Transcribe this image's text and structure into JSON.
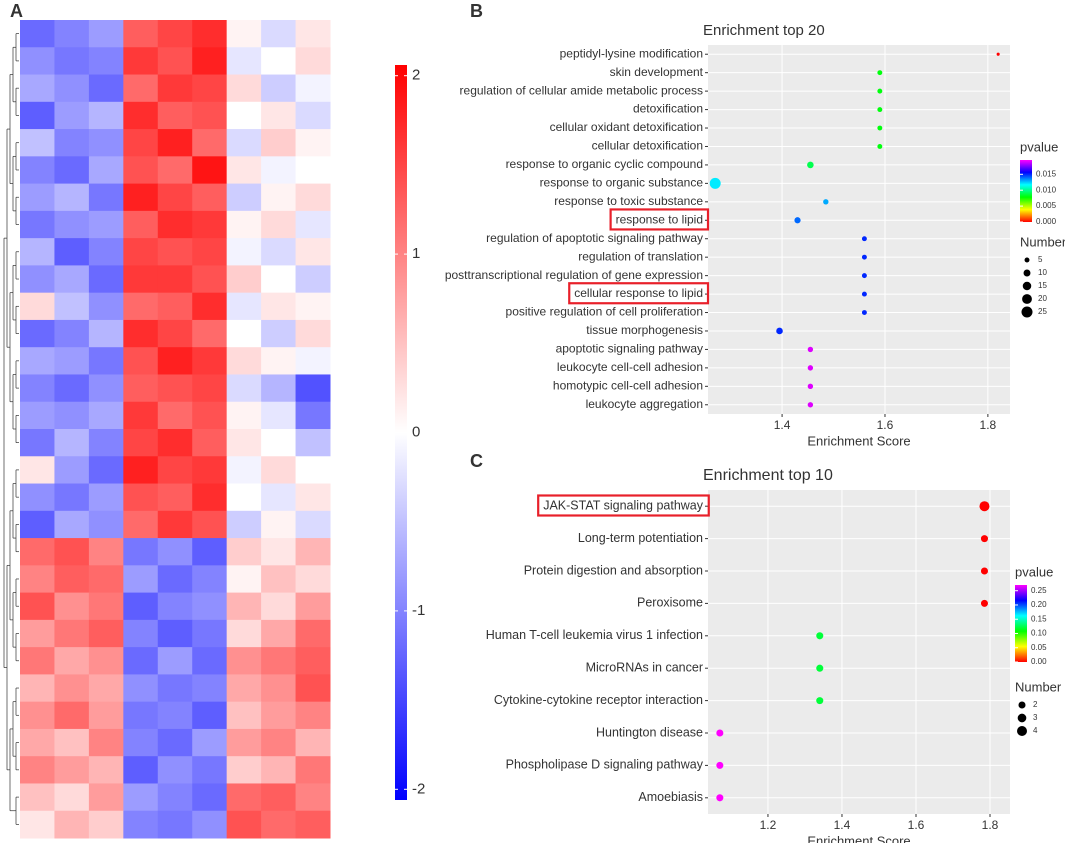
{
  "chart_data": [
    {
      "type": "heatmap",
      "panel": "A",
      "matrix": [
        [
          -1.2,
          -1.0,
          -0.8,
          1.3,
          1.5,
          1.7,
          0.1,
          -0.3,
          0.2
        ],
        [
          -0.9,
          -1.1,
          -1.0,
          1.6,
          1.4,
          1.8,
          -0.2,
          0.0,
          0.3
        ],
        [
          -0.7,
          -0.9,
          -1.2,
          1.2,
          1.6,
          1.5,
          0.3,
          -0.4,
          -0.1
        ],
        [
          -1.3,
          -0.8,
          -0.6,
          1.7,
          1.3,
          1.4,
          0.0,
          0.2,
          -0.3
        ],
        [
          -0.5,
          -1.0,
          -0.9,
          1.5,
          1.8,
          1.2,
          -0.3,
          0.4,
          0.1
        ],
        [
          -1.0,
          -1.2,
          -0.7,
          1.4,
          1.2,
          1.9,
          0.2,
          -0.1,
          0.0
        ],
        [
          -0.8,
          -0.6,
          -1.1,
          1.8,
          1.5,
          1.3,
          -0.4,
          0.1,
          0.3
        ],
        [
          -1.1,
          -0.9,
          -0.8,
          1.3,
          1.7,
          1.6,
          0.1,
          0.3,
          -0.2
        ],
        [
          -0.6,
          -1.3,
          -1.0,
          1.5,
          1.4,
          1.5,
          -0.1,
          -0.3,
          0.2
        ],
        [
          -0.9,
          -0.7,
          -1.2,
          1.6,
          1.6,
          1.4,
          0.4,
          0.0,
          -0.4
        ],
        [
          0.3,
          -0.5,
          -0.9,
          1.2,
          1.3,
          1.7,
          -0.2,
          0.2,
          0.1
        ],
        [
          -1.2,
          -1.0,
          -0.6,
          1.7,
          1.5,
          1.2,
          0.0,
          -0.4,
          0.3
        ],
        [
          -0.7,
          -0.8,
          -1.1,
          1.4,
          1.8,
          1.6,
          0.3,
          0.1,
          -0.1
        ],
        [
          -1.0,
          -1.2,
          -0.9,
          1.3,
          1.4,
          1.5,
          -0.3,
          -0.6,
          -1.4
        ],
        [
          -0.8,
          -0.9,
          -0.7,
          1.6,
          1.2,
          1.4,
          0.1,
          -0.2,
          -1.1
        ],
        [
          -1.1,
          -0.6,
          -1.0,
          1.5,
          1.7,
          1.3,
          0.2,
          0.0,
          -0.5
        ],
        [
          0.2,
          -0.8,
          -1.2,
          1.8,
          1.5,
          1.6,
          -0.1,
          0.3,
          0.0
        ],
        [
          -0.9,
          -1.1,
          -0.8,
          1.4,
          1.3,
          1.7,
          0.0,
          -0.2,
          0.2
        ],
        [
          -1.3,
          -0.7,
          -0.9,
          1.2,
          1.6,
          1.4,
          -0.4,
          0.1,
          -0.3
        ],
        [
          1.2,
          1.4,
          1.0,
          -1.1,
          -0.9,
          -1.3,
          0.4,
          0.2,
          0.6
        ],
        [
          1.0,
          1.3,
          1.2,
          -0.8,
          -1.2,
          -1.0,
          0.1,
          0.5,
          0.3
        ],
        [
          1.4,
          0.9,
          1.1,
          -1.3,
          -1.0,
          -0.9,
          0.6,
          0.3,
          0.8
        ],
        [
          0.8,
          1.1,
          1.3,
          -1.0,
          -1.3,
          -1.1,
          0.3,
          0.7,
          1.2
        ],
        [
          1.1,
          0.7,
          0.9,
          -1.2,
          -0.8,
          -1.2,
          0.9,
          1.1,
          1.3
        ],
        [
          0.6,
          0.9,
          0.7,
          -0.9,
          -1.1,
          -1.0,
          0.7,
          0.9,
          1.4
        ],
        [
          0.9,
          1.2,
          0.8,
          -1.1,
          -1.0,
          -1.3,
          0.5,
          0.8,
          1.0
        ],
        [
          0.7,
          0.5,
          1.0,
          -1.0,
          -1.2,
          -0.8,
          0.8,
          1.0,
          0.6
        ],
        [
          1.0,
          0.8,
          0.6,
          -1.3,
          -0.9,
          -1.1,
          0.4,
          0.6,
          1.1
        ],
        [
          0.5,
          0.3,
          0.8,
          -0.8,
          -1.0,
          -1.2,
          1.2,
          1.3,
          1.0
        ],
        [
          0.2,
          0.6,
          0.4,
          -1.0,
          -1.1,
          -0.9,
          1.4,
          1.2,
          1.3
        ]
      ],
      "clim": [
        -2.06,
        2.06
      ],
      "cticks": [
        2,
        1,
        0,
        -1,
        -2
      ],
      "colors": [
        "#0000ff",
        "#ffffff",
        "#ff0000"
      ]
    },
    {
      "type": "dot",
      "panel": "B",
      "title": "Enrichment top 20",
      "xlabel": "Enrichment Score",
      "categories": [
        "peptidyl-lysine modification",
        "skin development",
        "regulation of cellular amide metabolic process",
        "detoxification",
        "cellular oxidant detoxification",
        "cellular detoxification",
        "response to organic cyclic compound",
        "response to organic substance",
        "response to toxic substance",
        "response to lipid",
        "regulation of apoptotic signaling pathway",
        "regulation of translation",
        "posttranscriptional regulation of gene expression",
        "cellular response to lipid",
        "positive regulation of cell proliferation",
        "tissue morphogenesis",
        "apoptotic signaling pathway",
        "leukocyte cell-cell adhesion",
        "homotypic cell-cell adhesion",
        "leukocyte aggregation"
      ],
      "values": [
        1.82,
        1.59,
        1.59,
        1.59,
        1.59,
        1.59,
        1.455,
        1.27,
        1.485,
        1.43,
        1.56,
        1.56,
        1.56,
        1.56,
        1.56,
        1.395,
        1.455,
        1.455,
        1.455,
        1.455
      ],
      "pvalue": [
        0.0,
        0.008,
        0.008,
        0.008,
        0.008,
        0.008,
        0.009,
        0.012,
        0.013,
        0.014,
        0.015,
        0.015,
        0.015,
        0.015,
        0.015,
        0.015,
        0.019,
        0.019,
        0.019,
        0.019
      ],
      "number": [
        2,
        5,
        5,
        5,
        5,
        5,
        9,
        25,
        6,
        8,
        5,
        5,
        5,
        5,
        5,
        9,
        6,
        6,
        6,
        6
      ],
      "xlim": [
        1.256,
        1.843
      ],
      "xticks": [
        1.4,
        1.6,
        1.8
      ],
      "clim": [
        0,
        0.0195
      ],
      "cticks": [
        {
          "value": 0.015,
          "label": "0.015"
        },
        {
          "value": 0.01,
          "label": "0.010"
        },
        {
          "value": 0.005,
          "label": "0.005"
        },
        {
          "value": 0,
          "label": "0.000"
        }
      ],
      "colorscale": "rainbow",
      "color_title": "pvalue",
      "size_title": "Number",
      "sizeticks": [
        5,
        10,
        15,
        20,
        25
      ],
      "highlight": [
        9,
        13
      ]
    },
    {
      "type": "dot",
      "panel": "C",
      "title": "Enrichment top 10",
      "xlabel": "Enrichment Score",
      "categories": [
        "JAK-STAT signaling pathway",
        "Long-term potentiation",
        "Protein digestion and absorption",
        "Peroxisome",
        "Human T-cell leukemia virus 1 infection",
        "MicroRNAs in cancer",
        "Cytokine-cytokine receptor interaction",
        "Huntington disease",
        "Phospholipase D signaling pathway",
        "Amoebiasis"
      ],
      "values": [
        1.785,
        1.785,
        1.785,
        1.785,
        1.34,
        1.34,
        1.34,
        1.07,
        1.07,
        1.07
      ],
      "pvalue": [
        0.0,
        0.0,
        0.0,
        0.0,
        0.12,
        0.12,
        0.12,
        0.27,
        0.27,
        0.27
      ],
      "number": [
        4,
        2,
        2,
        2,
        2,
        2,
        2,
        2,
        2,
        2
      ],
      "xlim": [
        1.038,
        1.854
      ],
      "xticks": [
        1.2,
        1.4,
        1.6,
        1.8
      ],
      "clim": [
        0,
        0.27
      ],
      "cticks": [
        {
          "value": 0.25,
          "label": "0.25"
        },
        {
          "value": 0.2,
          "label": "0.20"
        },
        {
          "value": 0.15,
          "label": "0.15"
        },
        {
          "value": 0.1,
          "label": "0.10"
        },
        {
          "value": 0.05,
          "label": "0.05"
        },
        {
          "value": 0,
          "label": "0.00"
        }
      ],
      "colorscale": "rainbow",
      "color_title": "pvalue",
      "size_title": "Number",
      "sizeticks": [
        2,
        3,
        4
      ],
      "highlight": [
        0
      ]
    }
  ]
}
